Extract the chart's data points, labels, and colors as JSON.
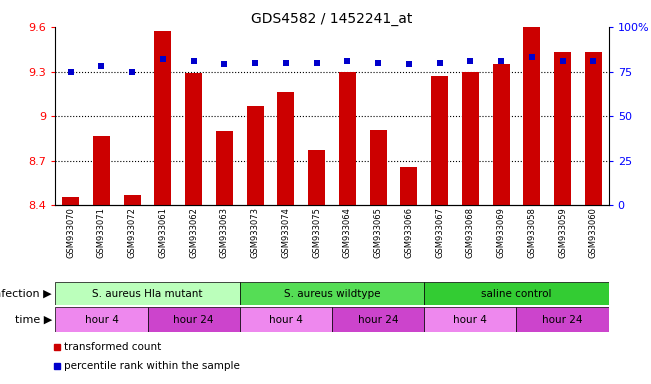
{
  "title": "GDS4582 / 1452241_at",
  "samples": [
    "GSM933070",
    "GSM933071",
    "GSM933072",
    "GSM933061",
    "GSM933062",
    "GSM933063",
    "GSM933073",
    "GSM933074",
    "GSM933075",
    "GSM933064",
    "GSM933065",
    "GSM933066",
    "GSM933067",
    "GSM933068",
    "GSM933069",
    "GSM933058",
    "GSM933059",
    "GSM933060"
  ],
  "bar_values": [
    8.46,
    8.87,
    8.47,
    9.57,
    9.29,
    8.9,
    9.07,
    9.16,
    8.77,
    9.3,
    8.91,
    8.66,
    9.27,
    9.3,
    9.35,
    9.6,
    9.43,
    9.43
  ],
  "dot_values": [
    75,
    78,
    75,
    82,
    81,
    79,
    80,
    80,
    80,
    81,
    80,
    79,
    80,
    81,
    81,
    83,
    81,
    81
  ],
  "bar_color": "#cc0000",
  "dot_color": "#0000cc",
  "ylim_left": [
    8.4,
    9.6
  ],
  "ylim_right": [
    0,
    100
  ],
  "yticks_left": [
    8.4,
    8.7,
    9.0,
    9.3,
    9.6
  ],
  "ytick_labels_left": [
    "8.4",
    "8.7",
    "9",
    "9.3",
    "9.6"
  ],
  "yticks_right": [
    0,
    25,
    50,
    75,
    100
  ],
  "ytick_labels_right": [
    "0",
    "25",
    "50",
    "75",
    "100%"
  ],
  "hlines": [
    8.7,
    9.0,
    9.3
  ],
  "infection_groups": [
    {
      "label": "S. aureus Hla mutant",
      "start": 0,
      "end": 6,
      "color": "#bbffbb"
    },
    {
      "label": "S. aureus wildtype",
      "start": 6,
      "end": 12,
      "color": "#55dd55"
    },
    {
      "label": "saline control",
      "start": 12,
      "end": 18,
      "color": "#33cc33"
    }
  ],
  "time_groups": [
    {
      "label": "hour 4",
      "start": 0,
      "end": 3,
      "color": "#ee88ee"
    },
    {
      "label": "hour 24",
      "start": 3,
      "end": 6,
      "color": "#cc44cc"
    },
    {
      "label": "hour 4",
      "start": 6,
      "end": 9,
      "color": "#ee88ee"
    },
    {
      "label": "hour 24",
      "start": 9,
      "end": 12,
      "color": "#cc44cc"
    },
    {
      "label": "hour 4",
      "start": 12,
      "end": 15,
      "color": "#ee88ee"
    },
    {
      "label": "hour 24",
      "start": 15,
      "end": 18,
      "color": "#cc44cc"
    }
  ],
  "legend_items": [
    {
      "label": "transformed count",
      "color": "#cc0000"
    },
    {
      "label": "percentile rank within the sample",
      "color": "#0000cc"
    }
  ],
  "bar_width": 0.55,
  "background_color": "#ffffff",
  "infection_label": "infection",
  "time_label": "time"
}
